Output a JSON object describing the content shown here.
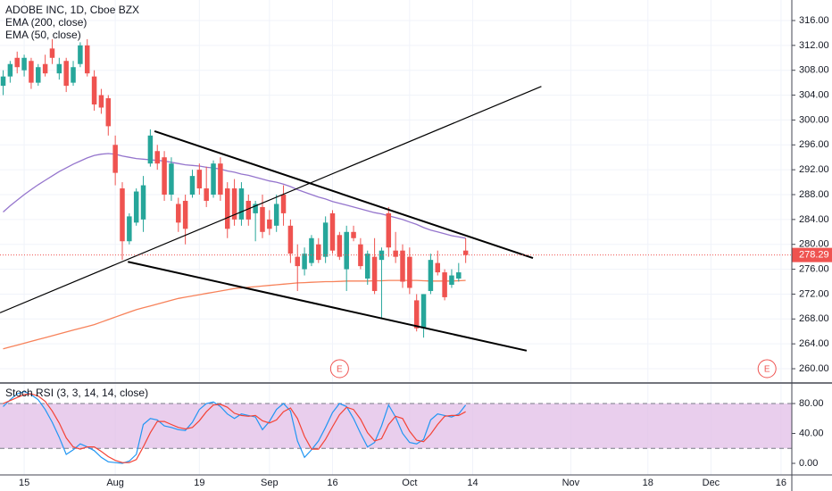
{
  "chart_data": [
    {
      "type": "candlestick",
      "title": "ADOBE INC, 1D, Cboe BZX",
      "up_color": "#26a69a",
      "down_color": "#ef5350",
      "grid": true,
      "xlim": [
        -0.45,
        112.54
      ],
      "ylim": [
        257.85,
        319.3
      ],
      "xticks": [
        {
          "value": 3,
          "label": "15"
        },
        {
          "value": 16,
          "label": "Aug"
        },
        {
          "value": 28,
          "label": "19"
        },
        {
          "value": 38,
          "label": "Sep"
        },
        {
          "value": 47,
          "label": "16"
        },
        {
          "value": 58,
          "label": "Oct"
        },
        {
          "value": 67,
          "label": "14"
        },
        {
          "value": 81,
          "label": "Nov"
        },
        {
          "value": 92,
          "label": "18"
        },
        {
          "value": 101,
          "label": "Dec"
        },
        {
          "value": 111,
          "label": "16"
        }
      ],
      "yticks": [
        {
          "value": 260,
          "label": "260.00"
        },
        {
          "value": 264,
          "label": "264.00"
        },
        {
          "value": 268,
          "label": "268.00"
        },
        {
          "value": 272,
          "label": "272.00"
        },
        {
          "value": 276,
          "label": "276.00"
        },
        {
          "value": 280,
          "label": "280.00"
        },
        {
          "value": 284,
          "label": "284.00"
        },
        {
          "value": 288,
          "label": "288.00"
        },
        {
          "value": 292,
          "label": "292.00"
        },
        {
          "value": 296,
          "label": "296.00"
        },
        {
          "value": 300,
          "label": "300.00"
        },
        {
          "value": 304,
          "label": "304.00"
        },
        {
          "value": 308,
          "label": "308.00"
        },
        {
          "value": 312,
          "label": "312.00"
        },
        {
          "value": 316,
          "label": "316.00"
        }
      ],
      "open": [
        305.5,
        307,
        310,
        308,
        309.5,
        306,
        309,
        311.5,
        307.5,
        309.5,
        306,
        309,
        312,
        307,
        304,
        303.5,
        296,
        289,
        280.5,
        283.5,
        284,
        293,
        295,
        294,
        288,
        286.5,
        287,
        288,
        292,
        289,
        288,
        293,
        289,
        289,
        284,
        287,
        285,
        286,
        284,
        283,
        288,
        283,
        278,
        276,
        277,
        280,
        278,
        285,
        281.5,
        276,
        282,
        280,
        274.5,
        278,
        277.5,
        285,
        279,
        279,
        278,
        271,
        266.5,
        272.5,
        277,
        275.5,
        273.5,
        274.5,
        279
      ],
      "high": [
        308,
        309.5,
        311,
        310.5,
        310,
        309,
        310.5,
        313,
        310,
        310,
        309.5,
        312.5,
        313,
        308,
        305,
        304,
        297.5,
        290,
        285,
        289,
        291,
        298.5,
        296,
        295,
        294,
        287.5,
        288,
        292,
        293,
        292.5,
        293.5,
        294,
        290,
        290.5,
        290,
        288,
        287,
        288,
        285.5,
        288,
        289.5,
        284,
        280,
        279.5,
        281.5,
        281,
        284.5,
        285.5,
        282,
        283,
        283,
        281,
        279,
        281,
        279.5,
        286,
        282,
        280,
        279.5,
        272,
        272,
        278.5,
        279,
        276,
        276,
        277,
        281
      ],
      "low": [
        304,
        306,
        307.5,
        307,
        305,
        305.5,
        307,
        309,
        306.5,
        304.5,
        305.5,
        308.5,
        307,
        301.5,
        301,
        297.5,
        289.5,
        277.5,
        280,
        283,
        282,
        292.5,
        292,
        287,
        287,
        282,
        280,
        287.5,
        288,
        286,
        287.5,
        287,
        281,
        283,
        283,
        283,
        280.5,
        281,
        281.5,
        282,
        283,
        277,
        272.5,
        275,
        276.5,
        277,
        277,
        278.5,
        277.5,
        272.5,
        280.5,
        276,
        273.5,
        272,
        268,
        278,
        277,
        273,
        272,
        266,
        265,
        272,
        275,
        271,
        273,
        274,
        277
      ],
      "close": [
        307,
        309,
        308.5,
        310,
        306,
        308.5,
        307.5,
        310,
        309,
        305.5,
        308.5,
        312,
        307.5,
        302.5,
        302,
        299,
        291.5,
        280.5,
        284.5,
        288.5,
        289.5,
        297.5,
        293,
        288,
        293,
        283.5,
        282.5,
        291,
        289,
        287,
        293,
        288,
        282.5,
        284,
        289,
        284,
        286.5,
        282,
        282.5,
        286.5,
        285,
        278.5,
        276.5,
        278.5,
        281,
        277.5,
        283.5,
        279,
        278,
        282,
        281,
        276.5,
        278.5,
        272.5,
        279,
        279.5,
        278,
        274,
        273,
        266.5,
        272,
        277.5,
        275.5,
        271.5,
        275,
        275.5,
        278.29
      ],
      "series": [
        {
          "name": "EMA (200, close)",
          "color": "#f7825a",
          "values": [
            263.2,
            263.5,
            263.8,
            264.1,
            264.4,
            264.7,
            265,
            265.3,
            265.6,
            265.9,
            266.2,
            266.5,
            266.8,
            267.1,
            267.5,
            267.9,
            268.3,
            268.7,
            269.1,
            269.5,
            269.8,
            270.1,
            270.4,
            270.7,
            271,
            271.3,
            271.5,
            271.7,
            271.9,
            272.1,
            272.3,
            272.5,
            272.7,
            272.9,
            273,
            273.1,
            273.2,
            273.3,
            273.4,
            273.5,
            273.6,
            273.7,
            273.8,
            273.85,
            273.9,
            273.95,
            274,
            274,
            274.05,
            274.1,
            274.1,
            274.1,
            274.1,
            274.15,
            274.15,
            274.2,
            274.2,
            274.2,
            274.2,
            274.2,
            274.15,
            274.1,
            274.1,
            274.1,
            274.1,
            274.15,
            274.2
          ]
        },
        {
          "name": "EMA (50, close)",
          "color": "#9575cd",
          "values": [
            285.2,
            286.2,
            287.1,
            288,
            288.8,
            289.6,
            290.3,
            291,
            291.7,
            292.3,
            292.9,
            293.4,
            293.9,
            294.3,
            294.5,
            294.6,
            294.5,
            294.2,
            294,
            293.8,
            293.7,
            293.6,
            293.5,
            293.4,
            293.2,
            293,
            292.8,
            292.7,
            292.6,
            292.4,
            292.3,
            292.1,
            291.8,
            291.6,
            291.3,
            291.1,
            290.8,
            290.5,
            290.2,
            290,
            289.7,
            289.3,
            288.8,
            288.4,
            288,
            287.6,
            287.3,
            286.9,
            286.6,
            286.3,
            286,
            285.7,
            285.4,
            285.1,
            284.9,
            284.6,
            284.3,
            284,
            283.6,
            283.2,
            282.7,
            282.3,
            282,
            281.7,
            281.4,
            281.2,
            281
          ]
        }
      ],
      "last_price": 278.29,
      "last_price_color": "#ef5350",
      "trendlines": [
        {
          "color": "#000000",
          "width": 2,
          "x": [
            21.6,
            75.6
          ],
          "y": [
            298.2,
            277.8
          ]
        },
        {
          "color": "#000000",
          "width": 2,
          "x": [
            17.8,
            74.7
          ],
          "y": [
            277.2,
            262.9
          ]
        },
        {
          "color": "#000000",
          "width": 1.2,
          "x": [
            -0.45,
            76.8
          ],
          "y": [
            269.0,
            305.4
          ]
        }
      ],
      "events": [
        {
          "x": 48,
          "label": "E"
        },
        {
          "x": 109,
          "label": "E"
        }
      ]
    },
    {
      "type": "line",
      "title": "Stoch RSI (3, 3, 14, 14, close)",
      "xlim": [
        -0.45,
        112.54
      ],
      "ylim": [
        -15.5,
        106.3
      ],
      "yticks": [
        {
          "value": 0,
          "label": "0.00"
        },
        {
          "value": 40,
          "label": "40.00"
        },
        {
          "value": 80,
          "label": "80.00"
        }
      ],
      "levels": [
        20,
        80
      ],
      "band_color": "#e1bee7",
      "series": [
        {
          "color": "#2196f3",
          "values": [
            76,
            85,
            93,
            96,
            92,
            85,
            72,
            55,
            35,
            12,
            18,
            26,
            22,
            17,
            8,
            2,
            1,
            0,
            3,
            12,
            52,
            60,
            58,
            50,
            48,
            45,
            44,
            55,
            72,
            80,
            82,
            76,
            66,
            60,
            66,
            64,
            62,
            45,
            56,
            72,
            80,
            70,
            30,
            8,
            18,
            30,
            48,
            68,
            80,
            76,
            60,
            40,
            22,
            28,
            50,
            78,
            62,
            40,
            28,
            26,
            32,
            58,
            66,
            64,
            62,
            66,
            78
          ]
        },
        {
          "color": "#f44336",
          "values": [
            80,
            84,
            88,
            92,
            93,
            90,
            83,
            70,
            54,
            34,
            22,
            19,
            22,
            22,
            16,
            9,
            4,
            1,
            1,
            5,
            22,
            41,
            56,
            56,
            52,
            48,
            46,
            48,
            57,
            69,
            78,
            79,
            75,
            67,
            64,
            63,
            64,
            57,
            54,
            58,
            69,
            74,
            60,
            36,
            19,
            19,
            32,
            49,
            65,
            75,
            72,
            59,
            41,
            30,
            33,
            52,
            63,
            60,
            43,
            31,
            29,
            39,
            52,
            63,
            64,
            64,
            69
          ]
        }
      ]
    }
  ]
}
